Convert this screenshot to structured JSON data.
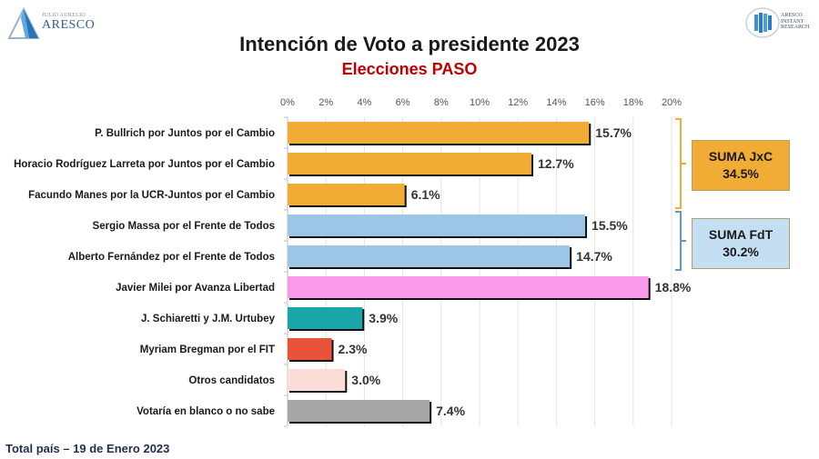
{
  "header": {
    "left_logo": {
      "icon": "aresco-triangle-logo",
      "small_text": "JULIO AURELIO",
      "big_text": "ARESCO"
    },
    "right_logo": {
      "icon": "aresco-instant-research-logo",
      "lines": [
        "ARESCO",
        "INSTANT",
        "RESEARCH"
      ]
    },
    "title": "Intención de Voto a presidente 2023",
    "subtitle": "Elecciones PASO"
  },
  "footer": "Total país – 19 de Enero 2023",
  "summary_boxes": [
    {
      "label": "SUMA JxC",
      "value": "34.5%",
      "color": "#f0ac35",
      "bracket_color": "#f0ac35"
    },
    {
      "label": "SUMA FdT",
      "value": "30.2%",
      "color": "#c5dff2",
      "bracket_color": "#5b9bd5"
    }
  ],
  "chart_data": {
    "type": "bar",
    "orientation": "horizontal",
    "title": "Intención de Voto a presidente 2023",
    "subtitle": "Elecciones PASO",
    "xlabel": "",
    "ylabel": "",
    "xlim": [
      0,
      20
    ],
    "x_ticks": [
      "0%",
      "2%",
      "4%",
      "6%",
      "8%",
      "10%",
      "12%",
      "14%",
      "16%",
      "18%",
      "20%"
    ],
    "grid": true,
    "categories": [
      "P. Bullrich por Juntos por el Cambio",
      "Horacio Rodríguez Larreta por Juntos por el Cambio",
      "Facundo Manes por la UCR-Juntos por el Cambio",
      "Sergio Massa por el Frente de Todos",
      "Alberto Fernández por el Frente de Todos",
      "Javier Milei por Avanza Libertad",
      "J. Schiaretti y J.M. Urtubey",
      "Myriam Bregman por el FIT",
      "Otros candidatos",
      "Votaría en blanco o no sabe"
    ],
    "values": [
      15.7,
      12.7,
      6.1,
      15.5,
      14.7,
      18.8,
      3.9,
      2.3,
      3.0,
      7.4
    ],
    "labels": [
      "15.7%",
      "12.7%",
      "6.1%",
      "15.5%",
      "14.7%",
      "18.8%",
      "3.9%",
      "2.3%",
      "3.0%",
      "7.4%"
    ],
    "colors": [
      "#f0ac35",
      "#f0ac35",
      "#f0ac35",
      "#9dc6e6",
      "#9dc6e6",
      "#f99ae8",
      "#1aa5a8",
      "#e8533a",
      "#fbdcd6",
      "#a6a6a6"
    ],
    "groups": [
      {
        "name": "SUMA JxC",
        "members": [
          0,
          1,
          2
        ],
        "total": 34.5
      },
      {
        "name": "SUMA FdT",
        "members": [
          3,
          4
        ],
        "total": 30.2
      }
    ]
  }
}
